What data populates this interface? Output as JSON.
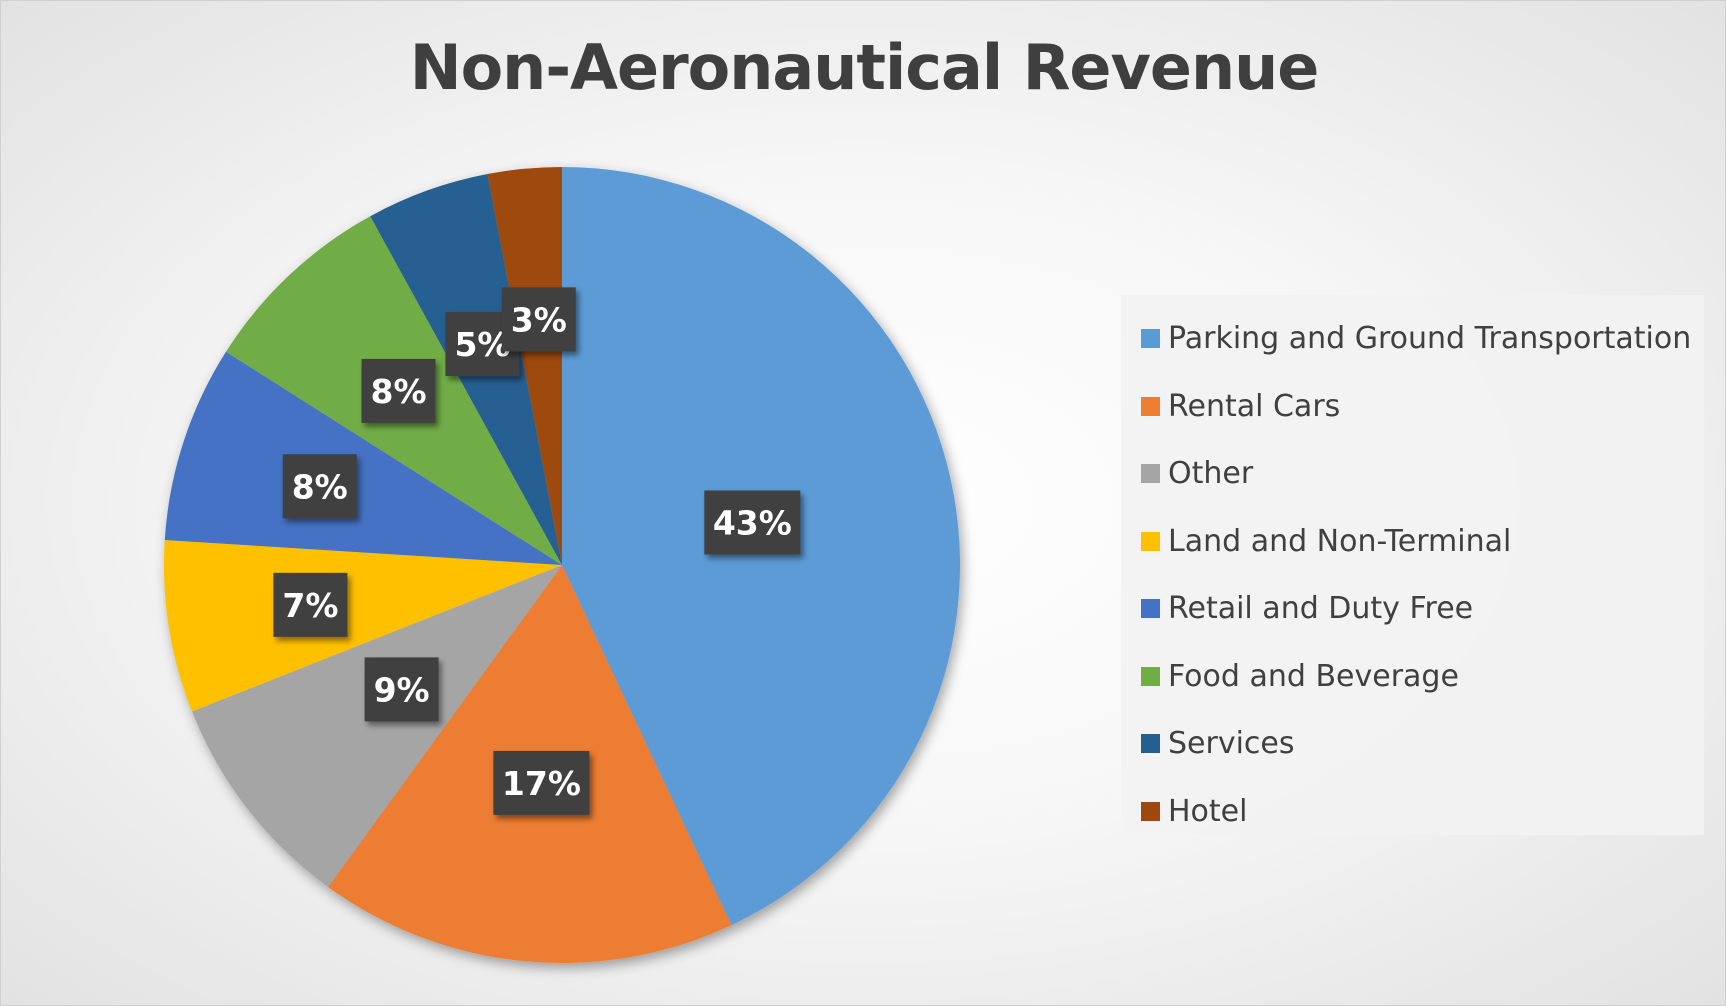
{
  "chart_data": {
    "type": "pie",
    "title": "Non-Aeronautical Revenue",
    "categories": [
      "Parking and Ground Transportation",
      "Rental Cars",
      "Other",
      "Land and Non-Terminal",
      "Retail and Duty Free",
      "Food and Beverage",
      "Services",
      "Hotel"
    ],
    "values": [
      43,
      17,
      9,
      7,
      8,
      8,
      5,
      3
    ],
    "data_labels": [
      "43%",
      "17%",
      "9%",
      "7%",
      "8%",
      "8%",
      "5%",
      "3%"
    ],
    "colors": [
      "#5B9BD5",
      "#ED7D31",
      "#A5A5A5",
      "#FFC000",
      "#4472C4",
      "#70AD47",
      "#255E91",
      "#9E480E"
    ],
    "legend_position": "right",
    "start_angle": "12 o'clock",
    "direction": "clockwise"
  }
}
